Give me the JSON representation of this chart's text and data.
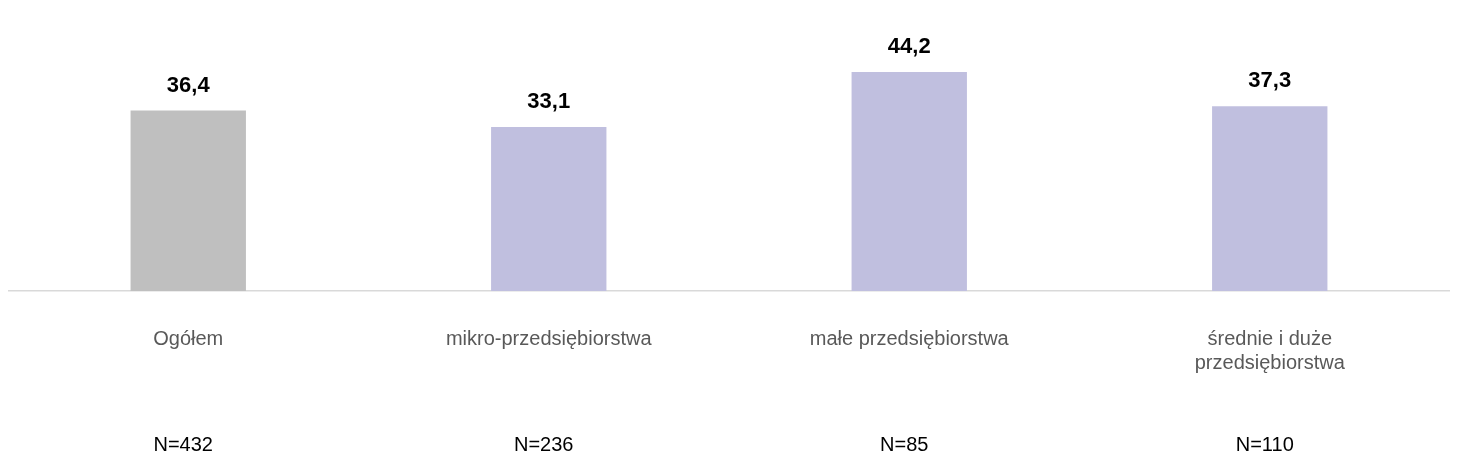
{
  "chart_data": {
    "type": "bar",
    "categories": [
      "Ogółem",
      "mikro-przedsiębiorstwa",
      "małe przedsiębiorstwa",
      "średnie i duże przedsiębiorstwa"
    ],
    "values": [
      36.4,
      33.1,
      44.2,
      37.3
    ],
    "colors": [
      "#bfbfbf",
      "#c0bfdf",
      "#c0bfdf",
      "#c0bfdf"
    ],
    "value_labels": [
      "36,4",
      "33,1",
      "44,2",
      "37,3"
    ],
    "annotations": [
      "N=432",
      "N=236",
      "N=85",
      "N=110"
    ],
    "grid": false,
    "legend": false
  }
}
